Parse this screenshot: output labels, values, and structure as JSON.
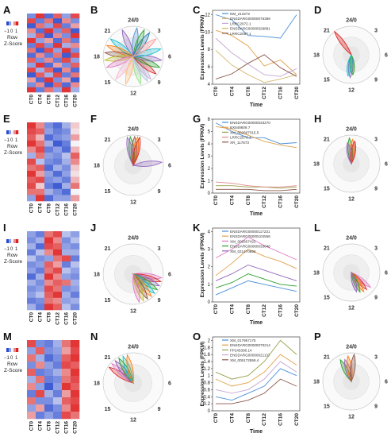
{
  "palette": {
    "low": "#2a4bd0",
    "mid": "#f4f4f8",
    "high": "#e02020"
  },
  "key": {
    "ticks": [
      "−1",
      "0",
      "1"
    ],
    "line1": "Row",
    "line2": "Z-Score"
  },
  "x_ticks": [
    "CT0",
    "CT4",
    "CT8",
    "CT12",
    "CT16",
    "CT20"
  ],
  "x_label": "Time",
  "y_label": "Expression Levels (FPKM)",
  "clock_labels": {
    "top": "24/0",
    "t3": "3",
    "t6": "6",
    "t9": "9",
    "t12": "12",
    "t15": "15",
    "t18": "18",
    "t21": "21"
  },
  "rows": [
    {
      "panels": [
        "A",
        "B",
        "C",
        "D"
      ],
      "heatmap": [
        [
          -0.6,
          0.9,
          -0.8,
          0.7,
          -0.5,
          0.8
        ],
        [
          0.8,
          -0.7,
          0.6,
          -0.9,
          0.5,
          -0.6
        ],
        [
          -0.9,
          0.6,
          -0.5,
          0.8,
          -0.7,
          0.4
        ],
        [
          0.5,
          -0.8,
          0.9,
          -0.6,
          0.7,
          -0.9
        ],
        [
          -0.4,
          0.7,
          -0.9,
          0.5,
          -0.6,
          0.9
        ],
        [
          0.9,
          -0.5,
          0.4,
          -0.8,
          0.6,
          -0.7
        ],
        [
          -0.7,
          0.8,
          -0.6,
          0.9,
          -0.4,
          0.5
        ],
        [
          0.6,
          -0.9,
          0.8,
          -0.5,
          0.9,
          -0.6
        ],
        [
          -0.8,
          0.5,
          -0.7,
          0.6,
          -0.9,
          0.8
        ],
        [
          0.7,
          -0.6,
          0.5,
          -0.7,
          0.8,
          -0.5
        ],
        [
          -0.5,
          0.9,
          -0.8,
          0.4,
          -0.6,
          0.7
        ],
        [
          0.8,
          -0.4,
          0.7,
          -0.9,
          0.5,
          -0.8
        ],
        [
          -0.9,
          0.7,
          -0.4,
          0.8,
          -0.7,
          0.6
        ],
        [
          0.4,
          -0.8,
          0.9,
          -0.6,
          0.4,
          -0.9
        ],
        [
          -0.6,
          0.5,
          -0.9,
          0.7,
          -0.8,
          0.5
        ],
        [
          0.9,
          -0.7,
          0.6,
          -0.5,
          0.9,
          -0.4
        ]
      ],
      "clock_petals": [
        {
          "h": 0.5,
          "color": "#4a90d9"
        },
        {
          "h": 1.5,
          "color": "#2ca02c"
        },
        {
          "h": 2.3,
          "color": "#1f77b4"
        },
        {
          "h": 22.5,
          "color": "#9467bd"
        },
        {
          "h": 20.5,
          "color": "#17becf"
        },
        {
          "h": 19.5,
          "color": "#ff7f0e"
        },
        {
          "h": 18.5,
          "color": "#8c564b"
        },
        {
          "h": 17.5,
          "color": "#bcbd22"
        },
        {
          "h": 16.5,
          "color": "#e377c2"
        },
        {
          "h": 14.5,
          "color": "#f7b6d2"
        },
        {
          "h": 13.0,
          "color": "#ffbb78"
        },
        {
          "h": 11.0,
          "color": "#98df8a"
        },
        {
          "h": 10.0,
          "color": "#aec7e8"
        },
        {
          "h": 9.5,
          "color": "#c5b0d5"
        },
        {
          "h": 8.5,
          "color": "#d62728"
        },
        {
          "h": 7.5,
          "color": "#2ca02c"
        },
        {
          "h": 6.5,
          "color": "#9467bd"
        },
        {
          "h": 5.0,
          "color": "#17becf"
        },
        {
          "h": 3.5,
          "color": "#ff9896"
        }
      ],
      "line_y_ticks": [
        "4",
        "6",
        "8",
        "10",
        "12"
      ],
      "line_y_range": [
        4,
        12.5
      ],
      "line_series": [
        {
          "name": "NM_213272",
          "color": "#4a90d9",
          "values": [
            12.0,
            11.4,
            9.6,
            9.5,
            9.3,
            12.0
          ]
        },
        {
          "name": "ENSDARG00000076389",
          "color": "#e2a04a",
          "values": [
            10.2,
            9.6,
            8.4,
            6.1,
            6.8,
            5.1
          ]
        },
        {
          "name": "LRRC2072.1",
          "color": "#c4a7d6",
          "values": [
            9.3,
            7.6,
            6.3,
            5.1,
            4.9,
            5.8
          ]
        },
        {
          "name": "ENSDARG00000029881",
          "color": "#d6b46a",
          "values": [
            7.9,
            6.2,
            5.1,
            4.2,
            4.6,
            5.1
          ]
        },
        {
          "name": "LRRC2067.1",
          "color": "#8c564b",
          "values": [
            4.6,
            5.2,
            6.4,
            7.4,
            5.9,
            4.9
          ]
        }
      ],
      "sel_petals": [
        {
          "h": 21.6,
          "color": "#e02020",
          "len": 1.0,
          "w": 0.14
        },
        {
          "h": 12.2,
          "color": "#9467bd",
          "len": 0.8,
          "w": 0.16
        },
        {
          "h": 11.7,
          "color": "#2ca02c",
          "len": 0.7,
          "w": 0.16
        },
        {
          "h": 12.6,
          "color": "#17becf",
          "len": 0.75,
          "w": 0.16
        }
      ]
    },
    {
      "panels": [
        "E",
        "F",
        "G",
        "H"
      ],
      "heatmap": [
        [
          0.9,
          0.5,
          -0.6,
          -0.8,
          -0.4,
          0.2
        ],
        [
          0.8,
          0.7,
          -0.5,
          -0.7,
          -0.6,
          0.1
        ],
        [
          0.7,
          0.3,
          -0.8,
          -0.6,
          -0.5,
          0.4
        ],
        [
          0.9,
          0.6,
          -0.4,
          -0.9,
          -0.7,
          0.0
        ],
        [
          0.5,
          0.8,
          -0.7,
          -0.5,
          -0.8,
          0.3
        ],
        [
          -0.4,
          0.6,
          -0.5,
          -0.6,
          -0.3,
          0.7
        ],
        [
          0.8,
          -0.3,
          -0.6,
          -0.7,
          -0.4,
          0.5
        ],
        [
          0.6,
          0.7,
          -0.8,
          -0.4,
          -0.6,
          0.2
        ],
        [
          0.9,
          0.4,
          -0.5,
          -0.8,
          -0.5,
          0.1
        ],
        [
          0.7,
          0.8,
          -0.6,
          -0.5,
          -0.7,
          0.3
        ],
        [
          0.8,
          0.2,
          -0.7,
          -0.9,
          -0.4,
          0.6
        ],
        [
          0.6,
          0.6,
          -0.4,
          -0.6,
          -0.8,
          0.0
        ],
        [
          -0.5,
          0.9,
          -0.8,
          -0.5,
          -0.5,
          0.4
        ]
      ],
      "clock_petals": [
        {
          "h": 23.6,
          "color": "#2ca02c"
        },
        {
          "h": 0.2,
          "color": "#8c564b"
        },
        {
          "h": 0.6,
          "color": "#ff7f0e"
        },
        {
          "h": 23.2,
          "color": "#9467bd"
        },
        {
          "h": 0.9,
          "color": "#d62728"
        },
        {
          "h": 5.6,
          "color": "#9467bd"
        }
      ],
      "line_y_ticks": [
        "0",
        "1",
        "2",
        "3",
        "4",
        "5",
        "6"
      ],
      "line_y_range": [
        0,
        6
      ],
      "line_series": [
        {
          "name": "ENSDARG00000033270",
          "color": "#4a90d9",
          "values": [
            5.7,
            5.0,
            4.5,
            4.5,
            4.0,
            4.1
          ]
        },
        {
          "name": "BX548609.7",
          "color": "#e2a04a",
          "values": [
            5.4,
            5.2,
            4.7,
            4.2,
            3.9,
            3.7
          ]
        },
        {
          "name": "XM_002667315.5",
          "color": "#9aa04a",
          "values": [
            0.6,
            0.6,
            0.5,
            0.5,
            0.4,
            0.5
          ]
        },
        {
          "name": "LRRC2570.1",
          "color": "#e08a8a",
          "values": [
            0.9,
            0.8,
            0.6,
            0.5,
            0.5,
            0.6
          ]
        },
        {
          "name": "XR_117873",
          "color": "#8c564b",
          "values": [
            0.3,
            0.3,
            0.3,
            0.2,
            0.2,
            0.3
          ]
        }
      ],
      "sel_petals": [
        {
          "h": 23.7,
          "color": "#2ca02c",
          "len": 0.9,
          "w": 0.16
        },
        {
          "h": 0.2,
          "color": "#ff7f0e",
          "len": 0.85,
          "w": 0.16
        },
        {
          "h": 0.6,
          "color": "#d62728",
          "len": 0.8,
          "w": 0.16
        },
        {
          "h": 23.3,
          "color": "#9467bd",
          "len": 0.75,
          "w": 0.16
        }
      ]
    },
    {
      "panels": [
        "I",
        "J",
        "K",
        "L"
      ],
      "heatmap": [
        [
          -0.5,
          -0.7,
          0.6,
          0.8,
          -0.3,
          -0.5
        ],
        [
          -0.6,
          -0.4,
          0.9,
          0.5,
          -0.6,
          -0.3
        ],
        [
          -0.4,
          -0.8,
          0.8,
          0.7,
          -0.5,
          -0.6
        ],
        [
          -0.7,
          -0.3,
          0.5,
          0.9,
          -0.4,
          -0.4
        ],
        [
          -0.3,
          -0.6,
          -0.5,
          0.6,
          0.8,
          -0.7
        ],
        [
          -0.6,
          -0.5,
          0.7,
          0.4,
          -0.7,
          -0.3
        ],
        [
          -0.5,
          -0.7,
          0.6,
          0.8,
          -0.3,
          -0.5
        ],
        [
          -0.8,
          -0.4,
          0.9,
          0.5,
          -0.5,
          -0.6
        ],
        [
          -0.4,
          -0.6,
          0.5,
          0.7,
          0.6,
          -0.4
        ],
        [
          -0.6,
          -0.5,
          0.8,
          0.6,
          -0.6,
          -0.5
        ],
        [
          -0.5,
          -0.3,
          0.7,
          0.9,
          -0.4,
          -0.7
        ],
        [
          -0.7,
          -0.6,
          0.6,
          0.5,
          -0.5,
          -0.4
        ],
        [
          -0.4,
          -0.7,
          0.9,
          0.7,
          -0.3,
          -0.6
        ]
      ],
      "clock_petals": [
        {
          "h": 6.5,
          "color": "#e377c2"
        },
        {
          "h": 7.0,
          "color": "#d62728"
        },
        {
          "h": 7.6,
          "color": "#9467bd"
        },
        {
          "h": 8.2,
          "color": "#2ca02c"
        },
        {
          "h": 8.8,
          "color": "#17becf"
        },
        {
          "h": 9.4,
          "color": "#ff7f0e"
        },
        {
          "h": 10.0,
          "color": "#8c564b"
        },
        {
          "h": 10.6,
          "color": "#bcbd22"
        },
        {
          "h": 11.2,
          "color": "#e377c2"
        }
      ],
      "line_y_ticks": [
        "0",
        "1",
        "2",
        "3",
        "4"
      ],
      "line_y_range": [
        0,
        4.2
      ],
      "line_series": [
        {
          "name": "ENSDARG00000117231",
          "color": "#4a90d9",
          "values": [
            0.4,
            0.8,
            1.2,
            1.0,
            0.8,
            0.6
          ]
        },
        {
          "name": "ENSDARG00000102556",
          "color": "#e2a04a",
          "values": [
            1.5,
            2.2,
            3.0,
            2.6,
            2.3,
            1.9
          ]
        },
        {
          "name": "XM_002667422",
          "color": "#e377c2",
          "values": [
            2.5,
            3.0,
            3.7,
            3.2,
            2.8,
            2.4
          ]
        },
        {
          "name": "ENSDARG00000033646",
          "color": "#2ca02c",
          "values": [
            0.8,
            1.1,
            1.6,
            1.3,
            1.0,
            0.9
          ]
        },
        {
          "name": "XM_021470866",
          "color": "#9467bd",
          "values": [
            1.2,
            1.6,
            2.1,
            1.8,
            1.5,
            1.2
          ]
        }
      ],
      "sel_petals": [
        {
          "h": 8.5,
          "color": "#e377c2",
          "len": 0.85,
          "w": 0.14
        },
        {
          "h": 9.2,
          "color": "#d62728",
          "len": 0.8,
          "w": 0.14
        },
        {
          "h": 9.8,
          "color": "#ff7f0e",
          "len": 0.8,
          "w": 0.14
        },
        {
          "h": 10.4,
          "color": "#2ca02c",
          "len": 0.75,
          "w": 0.14
        },
        {
          "h": 11.0,
          "color": "#9467bd",
          "len": 0.7,
          "w": 0.14
        }
      ]
    },
    {
      "panels": [
        "M",
        "N",
        "O",
        "P"
      ],
      "heatmap": [
        [
          0.8,
          -0.6,
          -0.7,
          -0.4,
          0.6,
          0.9
        ],
        [
          -0.5,
          0.7,
          -0.6,
          -0.5,
          0.4,
          0.8
        ],
        [
          0.6,
          -0.4,
          -0.8,
          -0.6,
          0.7,
          0.9
        ],
        [
          -0.6,
          0.5,
          -0.5,
          -0.7,
          0.8,
          0.7
        ],
        [
          0.7,
          -0.7,
          -0.6,
          -0.4,
          0.5,
          0.9
        ],
        [
          -0.4,
          0.6,
          -0.7,
          -0.6,
          0.6,
          0.8
        ],
        [
          0.5,
          -0.5,
          -0.9,
          -0.5,
          0.9,
          0.7
        ],
        [
          -0.7,
          0.8,
          -0.4,
          -0.7,
          0.4,
          0.9
        ],
        [
          0.6,
          -0.6,
          -0.6,
          -0.3,
          0.7,
          0.8
        ],
        [
          -0.5,
          0.4,
          -0.8,
          -0.6,
          0.5,
          0.9
        ],
        [
          0.4,
          -0.7,
          -0.5,
          -0.7,
          0.8,
          0.6
        ]
      ],
      "clock_petals": [
        {
          "h": 20.2,
          "color": "#d62728"
        },
        {
          "h": 20.8,
          "color": "#e377c2"
        },
        {
          "h": 21.4,
          "color": "#9467bd"
        },
        {
          "h": 22.0,
          "color": "#2ca02c"
        },
        {
          "h": 22.6,
          "color": "#17becf"
        },
        {
          "h": 23.2,
          "color": "#ff7f0e"
        }
      ],
      "line_y_ticks": [
        "0",
        "0.2",
        "0.4",
        "0.6",
        "0.8",
        "1",
        "1.2",
        "1.4",
        "1.6",
        "1.8",
        "2"
      ],
      "line_y_range": [
        0,
        2.1
      ],
      "line_series": [
        {
          "name": "XM_017957175",
          "color": "#4a90d9",
          "values": [
            0.4,
            0.3,
            0.5,
            0.7,
            1.2,
            1.0
          ]
        },
        {
          "name": "ENSDARG00000070214",
          "color": "#e2a04a",
          "values": [
            0.9,
            0.7,
            0.8,
            1.1,
            1.6,
            1.3
          ]
        },
        {
          "name": "FP245396.14",
          "color": "#9aa04a",
          "values": [
            1.1,
            0.9,
            1.0,
            1.4,
            2.0,
            1.6
          ]
        },
        {
          "name": "ENSDARG00000021137",
          "color": "#c4a7d6",
          "values": [
            0.6,
            0.5,
            0.6,
            0.9,
            1.4,
            1.1
          ]
        },
        {
          "name": "XM_005172959.4",
          "color": "#8c564b",
          "values": [
            0.2,
            0.2,
            0.3,
            0.5,
            0.9,
            0.7
          ]
        }
      ],
      "sel_petals": [
        {
          "h": 22.2,
          "color": "#2ca02c",
          "len": 0.85,
          "w": 0.16
        },
        {
          "h": 22.9,
          "color": "#9467bd",
          "len": 0.8,
          "w": 0.16
        },
        {
          "h": 23.5,
          "color": "#ff7f0e",
          "len": 0.9,
          "w": 0.16
        },
        {
          "h": 0.4,
          "color": "#8c564b",
          "len": 0.95,
          "w": 0.16
        }
      ]
    }
  ]
}
